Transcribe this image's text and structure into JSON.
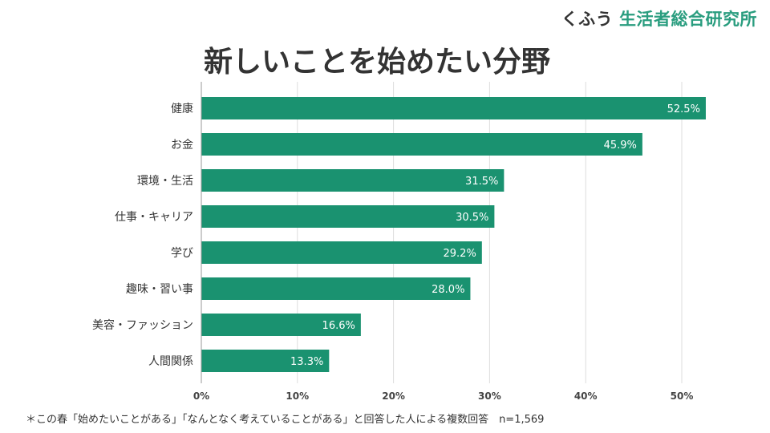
{
  "logo": {
    "prefix": "くふう",
    "name": "生活者総合研究所"
  },
  "footnote": "＊この春「始めたいことがある」「なんとなく考えていることがある」と回答した人による複数回答　n=1,569",
  "chart_data": {
    "type": "bar",
    "orientation": "horizontal",
    "title": "新しいことを始めたい分野",
    "categories": [
      "健康",
      "お金",
      "環境・生活",
      "仕事・キャリア",
      "学び",
      "趣味・習い事",
      "美容・ファッション",
      "人間関係"
    ],
    "values": [
      52.5,
      45.9,
      31.5,
      30.5,
      29.2,
      28.0,
      16.6,
      13.3
    ],
    "data_labels": [
      "52.5%",
      "45.9%",
      "31.5%",
      "30.5%",
      "29.2%",
      "28.0%",
      "16.6%",
      "13.3%"
    ],
    "xlim": [
      0,
      52.5
    ],
    "x_ticks": [
      "0%",
      "10%",
      "20%",
      "30%",
      "40%",
      "50%"
    ],
    "x_tick_values": [
      0,
      10,
      20,
      30,
      40,
      50
    ],
    "grid": "vertical",
    "bar_color": "#1a9270"
  }
}
